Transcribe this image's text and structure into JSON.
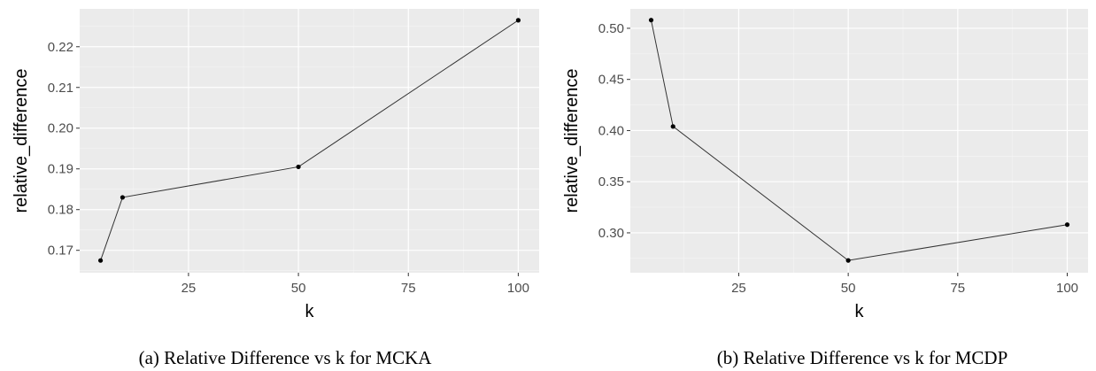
{
  "colors": {
    "panel_background": "#ebebeb",
    "major_grid": "#ffffff",
    "minor_grid": "#f5f5f5",
    "line": "#333333",
    "point": "#000000",
    "tick_text": "#4d4d4d",
    "tick_mark": "#333333"
  },
  "chart_data": [
    {
      "type": "line",
      "caption": "(a) Relative Difference vs k for MCKA",
      "xlabel": "k",
      "ylabel": "relative_difference",
      "xlim": [
        0.25,
        104.75
      ],
      "ylim": [
        0.1645,
        0.2293
      ],
      "x_ticks": [
        25,
        50,
        75,
        100
      ],
      "x_tick_labels": [
        "25",
        "50",
        "75",
        "100"
      ],
      "y_ticks": [
        0.17,
        0.18,
        0.19,
        0.2,
        0.21,
        0.22
      ],
      "y_tick_labels": [
        "0.17",
        "0.18",
        "0.19",
        "0.20",
        "0.21",
        "0.22"
      ],
      "grid": true,
      "series": [
        {
          "x": [
            5,
            10,
            50,
            100
          ],
          "y": [
            0.1675,
            0.183,
            0.1905,
            0.2265
          ]
        }
      ]
    },
    {
      "type": "line",
      "caption": "(b) Relative Difference vs k for MCDP",
      "xlabel": "k",
      "ylabel": "relative_difference",
      "xlim": [
        0.25,
        104.75
      ],
      "ylim": [
        0.261,
        0.519
      ],
      "x_ticks": [
        25,
        50,
        75,
        100
      ],
      "x_tick_labels": [
        "25",
        "50",
        "75",
        "100"
      ],
      "y_ticks": [
        0.3,
        0.35,
        0.4,
        0.45,
        0.5
      ],
      "y_tick_labels": [
        "0.30",
        "0.35",
        "0.40",
        "0.45",
        "0.50"
      ],
      "grid": true,
      "series": [
        {
          "x": [
            5,
            10,
            50,
            100
          ],
          "y": [
            0.508,
            0.404,
            0.273,
            0.308
          ]
        }
      ]
    }
  ]
}
